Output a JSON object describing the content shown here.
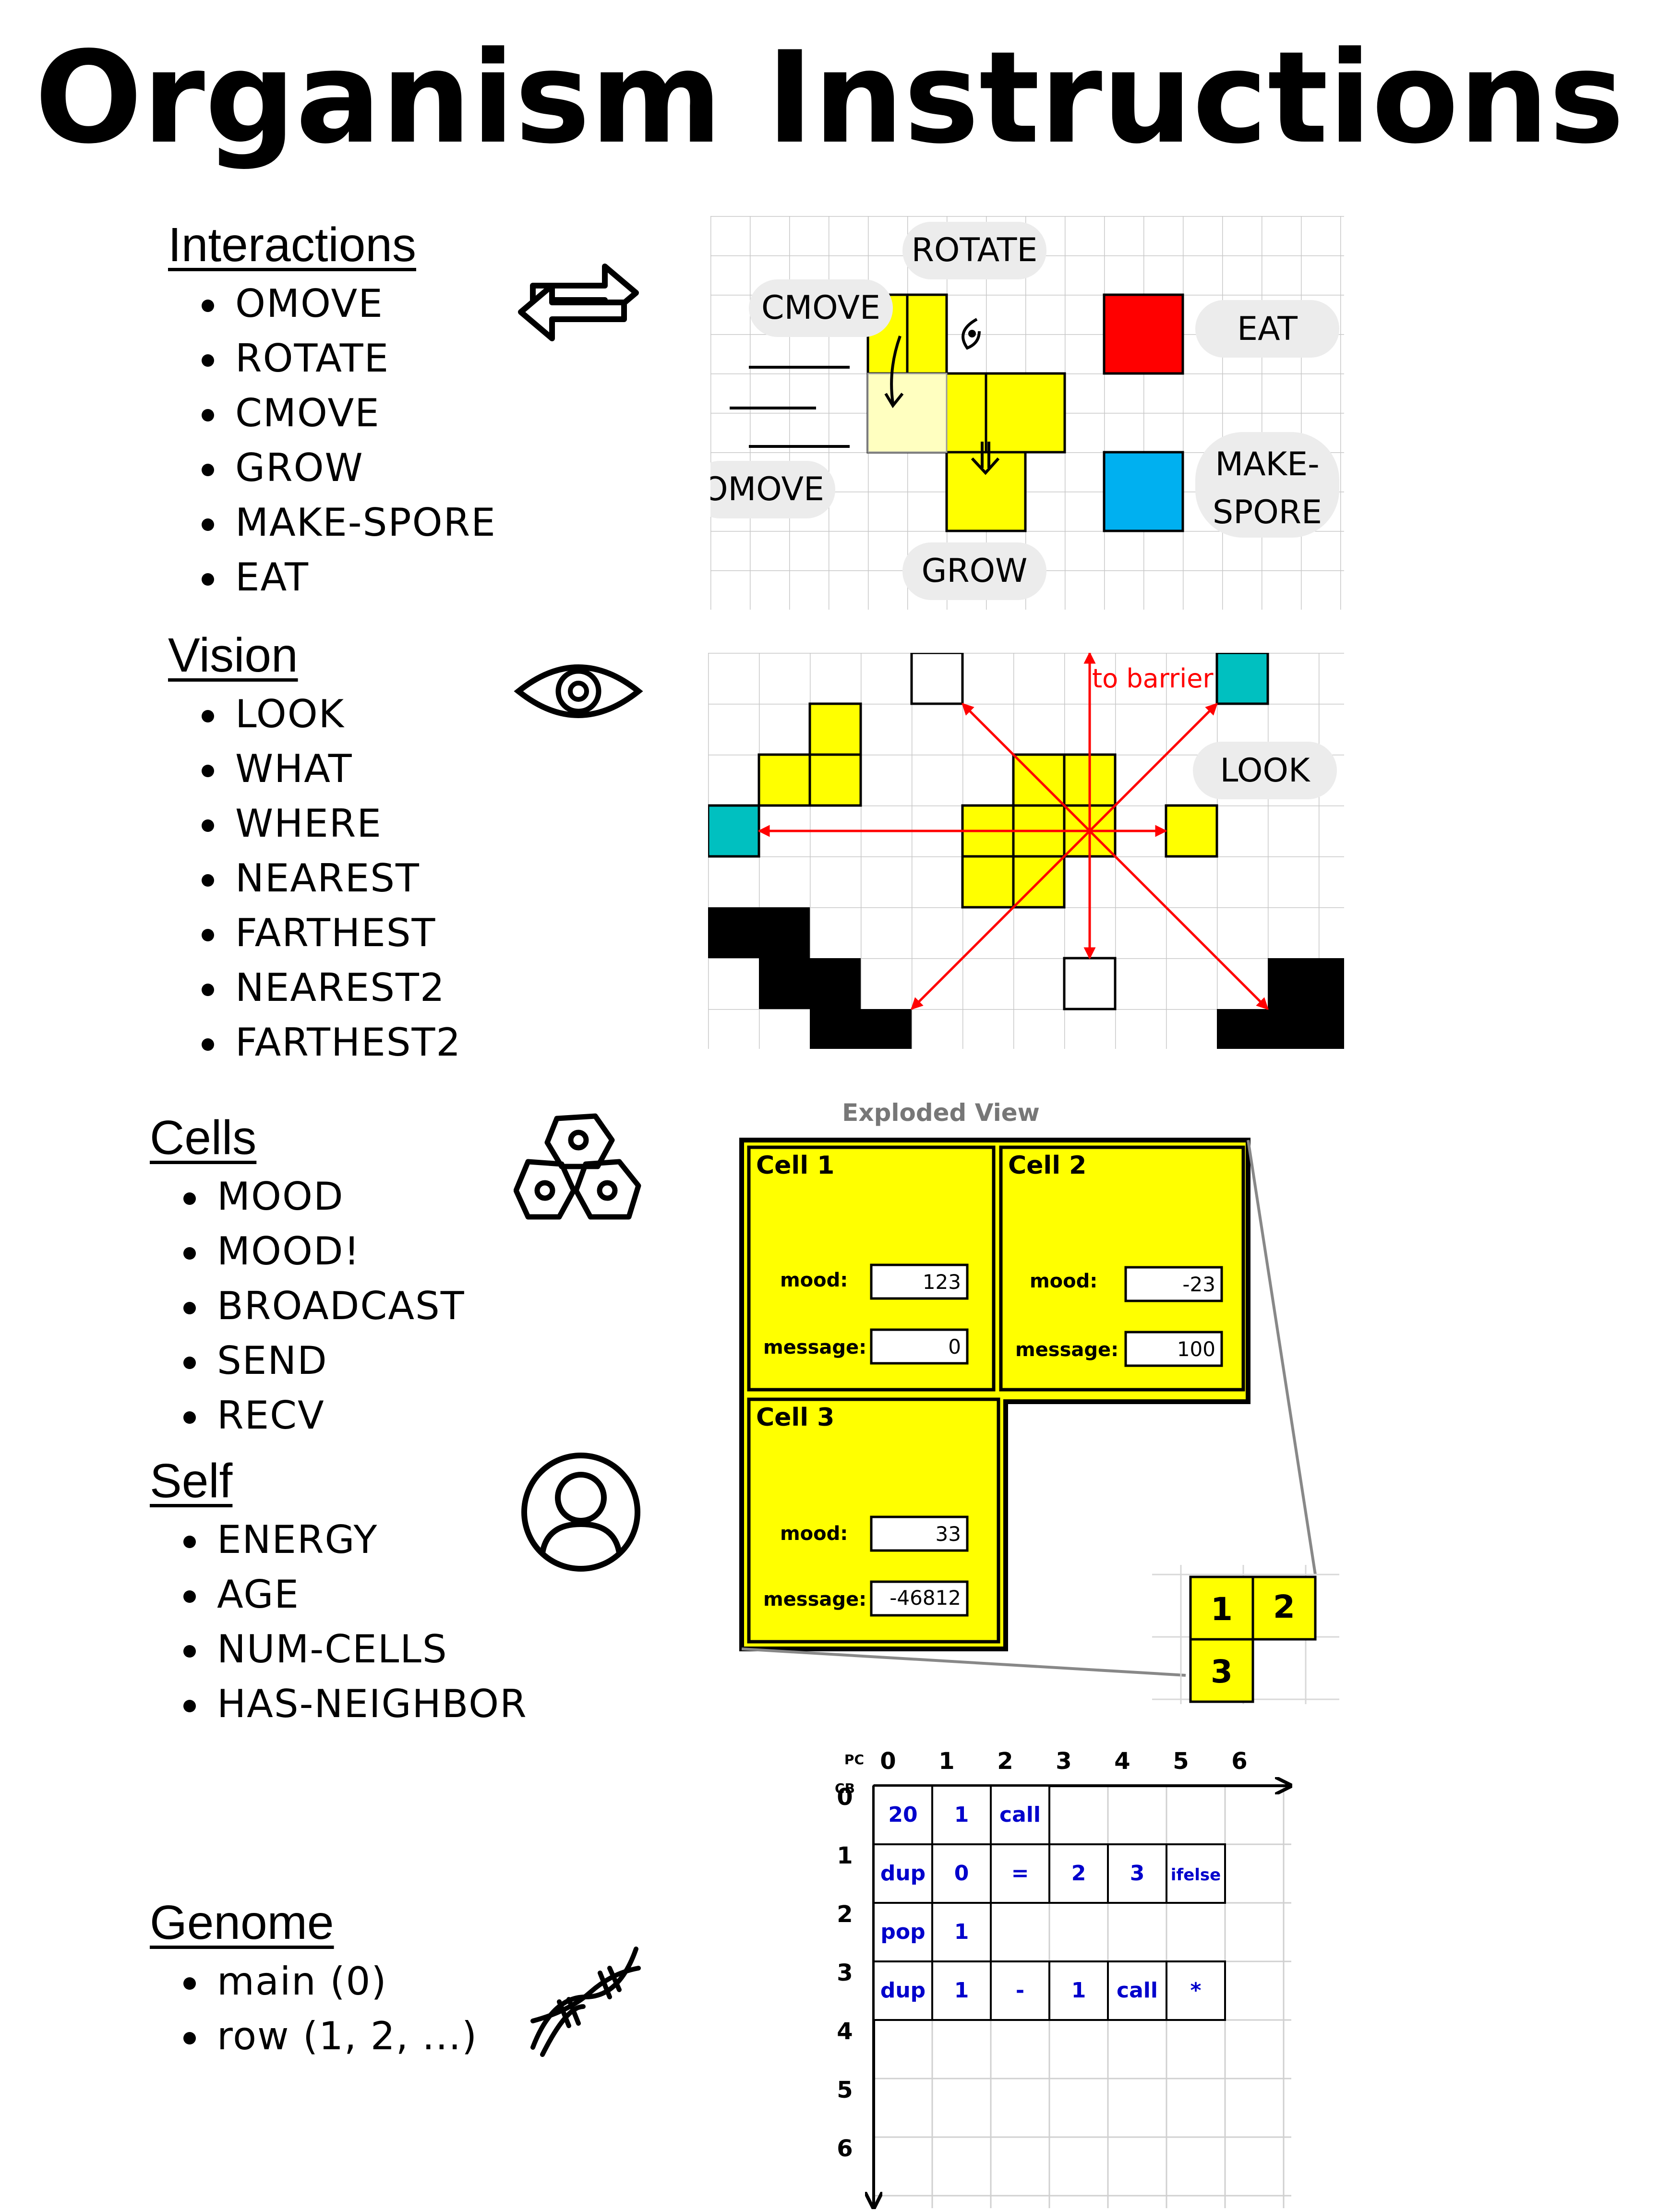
{
  "title": "Organism Instructions",
  "sections": {
    "interactions": {
      "title": "Interactions",
      "items": [
        "OMOVE",
        "ROTATE",
        "CMOVE",
        "GROW",
        "MAKE-SPORE",
        "EAT"
      ],
      "icon": "swap-arrows-icon"
    },
    "vision": {
      "title": "Vision",
      "items": [
        "LOOK",
        "WHAT",
        "WHERE",
        "NEAREST",
        "FARTHEST",
        "NEAREST2",
        "FARTHEST2"
      ],
      "icon": "eye-icon"
    },
    "cells": {
      "title": "Cells",
      "items": [
        "MOOD",
        "MOOD!",
        "BROADCAST",
        "SEND",
        "RECV"
      ],
      "icon": "cells-icon"
    },
    "self": {
      "title": "Self",
      "items": [
        "ENERGY",
        "AGE",
        "NUM-CELLS",
        "HAS-NEIGHBOR"
      ],
      "icon": "user-icon"
    },
    "genome": {
      "title": "Genome",
      "items": [
        "main (0)",
        "row (1, 2, ...)"
      ],
      "icon": "dna-icon"
    }
  },
  "interactions_diagram": {
    "labels": {
      "rotate": "ROTATE",
      "cmove": "CMOVE",
      "eat": "EAT",
      "omove": "OMOVE",
      "make_spore_1": "MAKE-",
      "make_spore_2": "SPORE",
      "grow": "GROW"
    },
    "colors": {
      "cell": "#ffff00",
      "food": "#ff0000",
      "spore": "#00b0f0",
      "ghost": "#ffffc0"
    }
  },
  "vision_diagram": {
    "look_label": "LOOK",
    "barrier_label": "to barrier",
    "colors": {
      "cell": "#ffff00",
      "target": "#00c0c0",
      "ray": "#ff0000",
      "barrier": "#000000"
    }
  },
  "exploded_view": {
    "title": "Exploded View",
    "mood_label": "mood:",
    "message_label": "message:",
    "cells": [
      {
        "name": "Cell 1",
        "mood": "123",
        "message": "0"
      },
      {
        "name": "Cell 2",
        "mood": "-23",
        "message": "100"
      },
      {
        "name": "Cell 3",
        "mood": "33",
        "message": "-46812"
      }
    ],
    "mini_labels": [
      "1",
      "2",
      "3"
    ]
  },
  "genome_grid": {
    "pc_label": "PC",
    "cb_label": "CB",
    "columns": [
      "0",
      "1",
      "2",
      "3",
      "4",
      "5",
      "6"
    ],
    "rows_labels": [
      "0",
      "1",
      "2",
      "3",
      "4",
      "5",
      "6"
    ],
    "rows": [
      [
        "20",
        "1",
        "call"
      ],
      [
        "dup",
        "0",
        "=",
        "2",
        "3",
        "ifelse"
      ],
      [
        "pop",
        "1"
      ],
      [
        "dup",
        "1",
        "-",
        "1",
        "call",
        "*"
      ]
    ]
  }
}
